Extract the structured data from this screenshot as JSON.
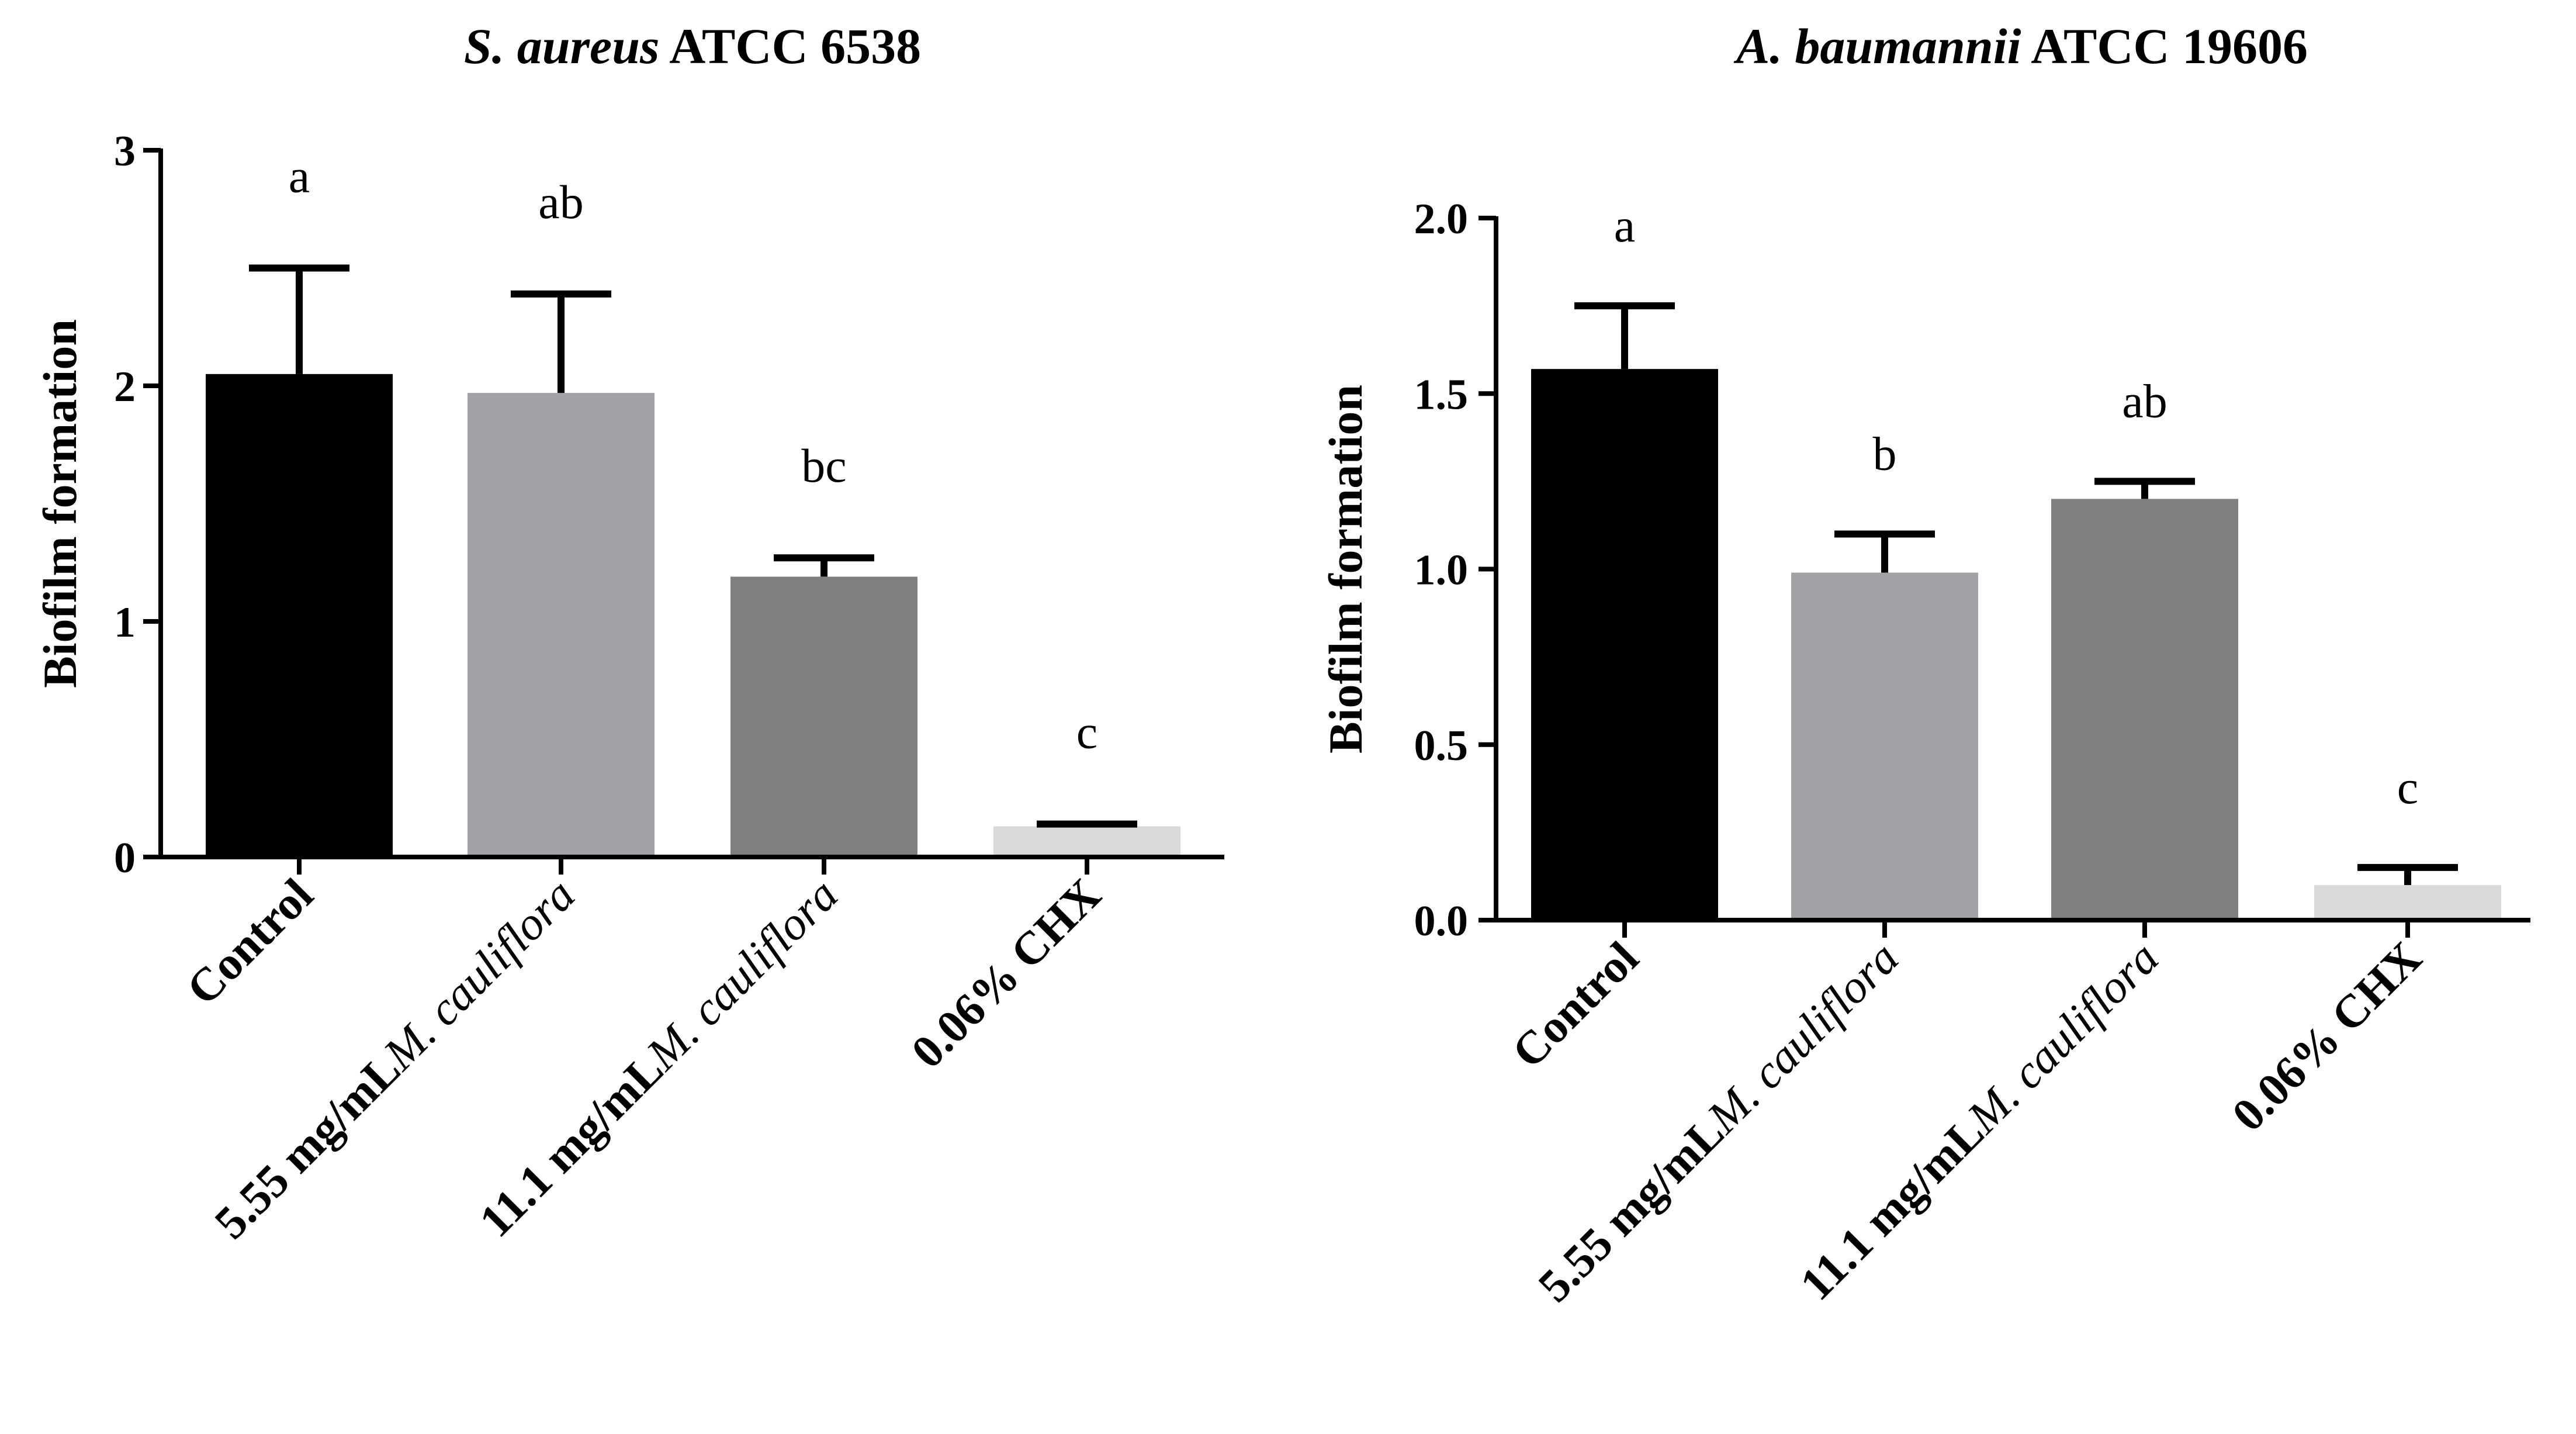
{
  "chart_data": [
    {
      "type": "bar",
      "title_italic": "S. aureus",
      "title_rest": " ATCC 6538",
      "ylabel": "Biofilm formation",
      "xlabel": "",
      "ylim": [
        0,
        3
      ],
      "yticks": [
        "0",
        "1",
        "2",
        "3"
      ],
      "ytick_values": [
        0,
        1,
        2,
        3
      ],
      "categories": [
        {
          "prefix": "Control",
          "italic": ""
        },
        {
          "prefix": "5.55 mg/mL",
          "italic": "M. cauliflora"
        },
        {
          "prefix": "11.1 mg/mL",
          "italic": "M. cauliflora"
        },
        {
          "prefix": "0.06% CHX",
          "italic": ""
        }
      ],
      "values": [
        2.05,
        1.97,
        1.19,
        0.13
      ],
      "errors": [
        0.45,
        0.42,
        0.08,
        0.01
      ],
      "letters": [
        "a",
        "ab",
        "bc",
        "c"
      ],
      "colors": [
        "#000000",
        "#a2a1a5",
        "#7f7f7f",
        "#d9d9d9"
      ],
      "grid": false
    },
    {
      "type": "bar",
      "title_italic": "A. baumannii",
      "title_rest": " ATCC 19606",
      "ylabel": "Biofilm formation",
      "xlabel": "",
      "ylim": [
        0,
        2.0
      ],
      "yticks": [
        "0.0",
        "0.5",
        "1.0",
        "1.5",
        "2.0"
      ],
      "ytick_values": [
        0,
        0.5,
        1.0,
        1.5,
        2.0
      ],
      "categories": [
        {
          "prefix": "Control",
          "italic": ""
        },
        {
          "prefix": "5.55 mg/mL",
          "italic": "M. cauliflora"
        },
        {
          "prefix": "11.1 mg/mL",
          "italic": "M. cauliflora"
        },
        {
          "prefix": "0.06% CHX",
          "italic": ""
        }
      ],
      "values": [
        1.57,
        0.99,
        1.2,
        0.1
      ],
      "errors": [
        0.18,
        0.11,
        0.05,
        0.05
      ],
      "letters": [
        "a",
        "b",
        "ab",
        "c"
      ],
      "colors": [
        "#000000",
        "#a2a1a5",
        "#7f7f7f",
        "#d9d9d9"
      ],
      "grid": false
    }
  ]
}
